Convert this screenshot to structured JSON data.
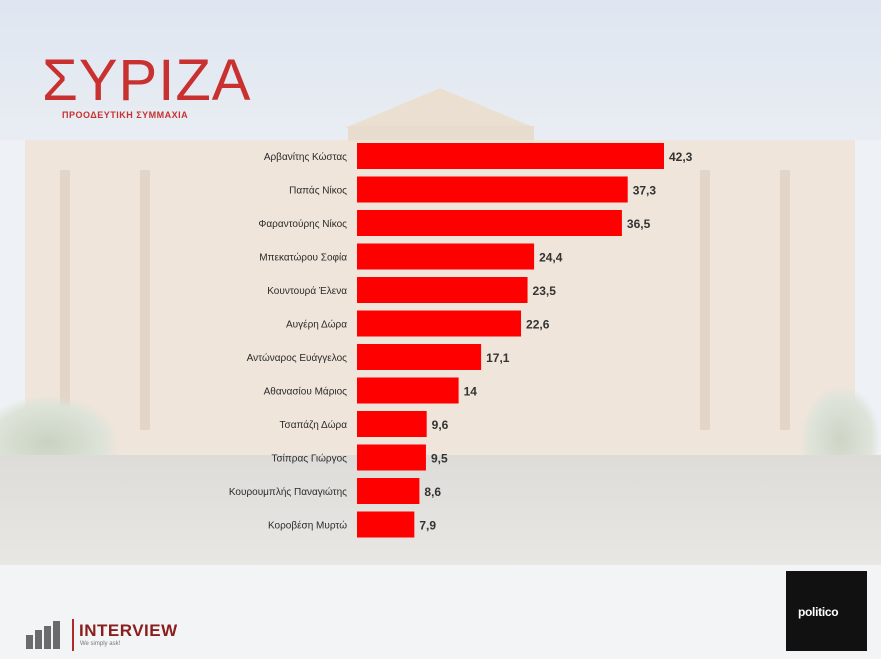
{
  "logo": {
    "name": "ΣΥΡΙΖΑ",
    "subtitle": "ΠΡΟΟΔΕΥΤΙΚΗ ΣΥΜΜΑΧΙΑ"
  },
  "colors": {
    "bar": "#ff0000",
    "logo_red": "#c8312f"
  },
  "chart_data": {
    "type": "bar",
    "orientation": "horizontal",
    "categories": [
      "Αρβανίτης Κώστας",
      "Παπάς Νίκος",
      "Φαραντούρης Νίκος",
      "Μπεκατώρου Σοφία",
      "Κουντουρά Έλενα",
      "Αυγέρη Δώρα",
      "Αντώναρος Ευάγγελος",
      "Αθανασίου Μάριος",
      "Τσαπάζη Δώρα",
      "Τσίπρας Γιώργος",
      "Κουρουμπλής Παναγιώτης",
      "Κοροβέση Μυρτώ"
    ],
    "values": [
      42.3,
      37.3,
      36.5,
      24.4,
      23.5,
      22.6,
      17.1,
      14,
      9.6,
      9.5,
      8.6,
      7.9
    ],
    "value_labels": [
      "42,3",
      "37,3",
      "36,5",
      "24,4",
      "23,5",
      "22,6",
      "17,1",
      "14",
      "9,6",
      "9,5",
      "8,6",
      "7,9"
    ],
    "title": "",
    "xlabel": "",
    "ylabel": "",
    "xlim": [
      0,
      42.3
    ],
    "grid": false,
    "legend": "none"
  },
  "footer": {
    "interview_label": "INTERVIEW",
    "interview_tagline": "We simply ask!",
    "politico_label": "politico"
  }
}
